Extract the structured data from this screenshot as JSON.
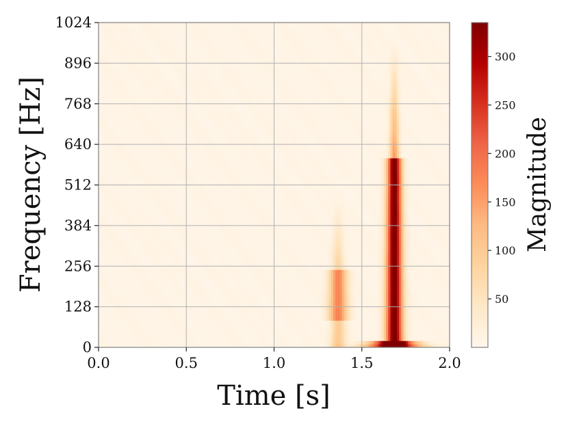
{
  "chart_data": {
    "type": "heatmap",
    "title": "",
    "xlabel": "Time [s]",
    "ylabel": "Frequency [Hz]",
    "xlim": [
      0.0,
      2.0
    ],
    "ylim": [
      0,
      1024
    ],
    "xticks": [
      0.0,
      0.5,
      1.0,
      1.5,
      2.0
    ],
    "xtick_labels": [
      "0.0",
      "0.5",
      "1.0",
      "1.5",
      "2.0"
    ],
    "yticks": [
      0,
      128,
      256,
      384,
      512,
      640,
      768,
      896,
      1024
    ],
    "ytick_labels": [
      "0",
      "128",
      "256",
      "384",
      "512",
      "640",
      "768",
      "896",
      "1024"
    ],
    "grid": true,
    "colormap": "OrRd",
    "colors": [
      "#fff7ec",
      "#fee8c8",
      "#fdd49e",
      "#fdbb84",
      "#fc8d59",
      "#ef6548",
      "#d7301f",
      "#b30000",
      "#7f0000"
    ],
    "colorbar": {
      "label": "Magnitude",
      "vmin": 0,
      "vmax": 335,
      "ticks": [
        50,
        100,
        150,
        200,
        250,
        300
      ],
      "tick_labels": [
        "50",
        "100",
        "150",
        "200",
        "250",
        "300"
      ]
    },
    "background_magnitude": 8,
    "events": [
      {
        "time_center": 1.365,
        "time_width": 0.03,
        "freq_max": 470,
        "magnitude_peak": 170,
        "strong_band": [
          90,
          240
        ]
      },
      {
        "time_center": 1.685,
        "time_width": 0.025,
        "freq_max": 960,
        "magnitude_peak": 335,
        "strong_band": [
          0,
          600
        ]
      },
      {
        "time_center": 1.68,
        "time_width": 0.08,
        "freq_max": 25,
        "magnitude_peak": 335,
        "strong_band": [
          0,
          25
        ]
      }
    ]
  }
}
